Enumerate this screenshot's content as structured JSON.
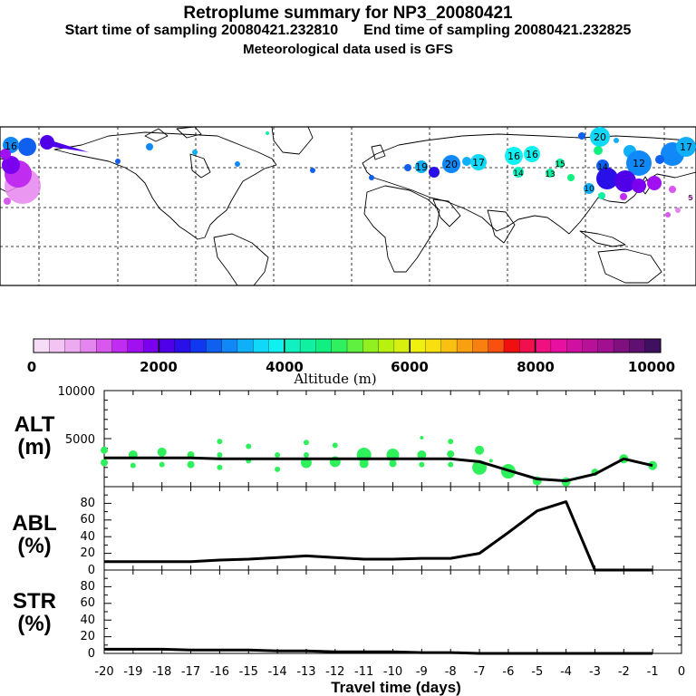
{
  "header": {
    "title": "Retroplume summary for NP3_20080421",
    "start_label": "Start time of sampling 20080421.232810",
    "end_label": "End time of sampling 20080421.232825",
    "met_label": "Meteorological data used is GFS"
  },
  "colorbar": {
    "title": "Altitude (m)",
    "tick_labels": [
      "0",
      "2000",
      "4000",
      "6000",
      "8000",
      "10000"
    ],
    "colors": [
      "#f7dcf7",
      "#f3c3f3",
      "#eeaaf0",
      "#e585ef",
      "#d858ee",
      "#c02cf0",
      "#a010f0",
      "#7c00f0",
      "#5000e8",
      "#2a10e8",
      "#1038f0",
      "#1060f0",
      "#1088f8",
      "#10b0f8",
      "#10d8f8",
      "#10f0f0",
      "#10f0c0",
      "#10f0a0",
      "#10f080",
      "#30f060",
      "#60f040",
      "#90f020",
      "#b8f010",
      "#d8f010",
      "#f0f010",
      "#f8e010",
      "#f8c010",
      "#f8a010",
      "#f88010",
      "#f85010",
      "#f01010",
      "#f01050",
      "#f01080",
      "#e810a0",
      "#d010a0",
      "#b81098",
      "#a01090",
      "#801080",
      "#601070",
      "#401060"
    ]
  },
  "panels": {
    "alt": {
      "label_line1": "ALT",
      "label_line2": "(m)"
    },
    "abl": {
      "label_line1": "ABL",
      "label_line2": "(%)"
    },
    "str": {
      "label_line1": "STR",
      "label_line2": "(%)"
    },
    "x_title": "Travel time (days)"
  },
  "chart_data": [
    {
      "name": "altitude",
      "type": "line",
      "title": "ALT (m)",
      "xlabel": "Travel time (days)",
      "ylabel": "ALT (m)",
      "xlim": [
        -20,
        0
      ],
      "ylim": [
        0,
        10000
      ],
      "y_tick_labels": [
        "5000",
        "10000"
      ],
      "x": [
        -20,
        -19,
        -18,
        -17,
        -16,
        -15,
        -14,
        -13,
        -12,
        -11,
        -10,
        -9,
        -8,
        -7,
        -6,
        -5,
        -4,
        -3,
        -2,
        -1
      ],
      "values": [
        3000,
        3000,
        3000,
        3000,
        2900,
        2900,
        2900,
        2900,
        2900,
        2900,
        2900,
        2900,
        2900,
        2600,
        1700,
        800,
        600,
        1300,
        2900,
        2200
      ],
      "plume_points": [
        {
          "x": -20,
          "y": 3800,
          "s": 4
        },
        {
          "x": -20,
          "y": 2500,
          "s": 4
        },
        {
          "x": -19,
          "y": 3300,
          "s": 5
        },
        {
          "x": -19,
          "y": 2200,
          "s": 3
        },
        {
          "x": -18,
          "y": 3600,
          "s": 5
        },
        {
          "x": -18,
          "y": 2300,
          "s": 3
        },
        {
          "x": -17,
          "y": 3300,
          "s": 4
        },
        {
          "x": -17,
          "y": 2300,
          "s": 4
        },
        {
          "x": -16,
          "y": 4700,
          "s": 3
        },
        {
          "x": -16,
          "y": 3300,
          "s": 3
        },
        {
          "x": -16,
          "y": 2000,
          "s": 3
        },
        {
          "x": -15,
          "y": 4200,
          "s": 3
        },
        {
          "x": -15,
          "y": 2700,
          "s": 3
        },
        {
          "x": -14,
          "y": 3300,
          "s": 3
        },
        {
          "x": -14,
          "y": 1800,
          "s": 3
        },
        {
          "x": -13,
          "y": 4600,
          "s": 3
        },
        {
          "x": -13,
          "y": 2500,
          "s": 6
        },
        {
          "x": -13,
          "y": 3300,
          "s": 3
        },
        {
          "x": -12,
          "y": 4300,
          "s": 3
        },
        {
          "x": -12,
          "y": 2600,
          "s": 6
        },
        {
          "x": -11,
          "y": 3300,
          "s": 8
        },
        {
          "x": -11,
          "y": 2400,
          "s": 5
        },
        {
          "x": -10,
          "y": 3300,
          "s": 7
        },
        {
          "x": -10,
          "y": 2400,
          "s": 4
        },
        {
          "x": -9,
          "y": 5100,
          "s": 2
        },
        {
          "x": -9,
          "y": 3300,
          "s": 5
        },
        {
          "x": -9,
          "y": 2300,
          "s": 3
        },
        {
          "x": -8,
          "y": 4700,
          "s": 3
        },
        {
          "x": -8,
          "y": 3400,
          "s": 4
        },
        {
          "x": -8,
          "y": 2300,
          "s": 3
        },
        {
          "x": -7,
          "y": 3800,
          "s": 5
        },
        {
          "x": -7,
          "y": 2000,
          "s": 8
        },
        {
          "x": -6.6,
          "y": 2700,
          "s": 2
        },
        {
          "x": -6,
          "y": 1600,
          "s": 8
        },
        {
          "x": -5,
          "y": 600,
          "s": 5
        },
        {
          "x": -4,
          "y": 500,
          "s": 5
        },
        {
          "x": -3,
          "y": 1500,
          "s": 4
        },
        {
          "x": -2,
          "y": 2900,
          "s": 5
        },
        {
          "x": -1,
          "y": 2200,
          "s": 5
        }
      ]
    },
    {
      "name": "abl",
      "type": "line",
      "title": "ABL (%)",
      "xlim": [
        -20,
        0
      ],
      "ylim": [
        0,
        100
      ],
      "y_tick_labels": [
        "0",
        "20",
        "40",
        "60",
        "80"
      ],
      "x": [
        -20,
        -19,
        -18,
        -17,
        -16,
        -15,
        -14,
        -13,
        -12,
        -11,
        -10,
        -9,
        -8,
        -7,
        -6,
        -5,
        -4,
        -3,
        -2,
        -1
      ],
      "values": [
        10,
        10,
        10,
        10,
        12,
        13,
        15,
        17,
        15,
        13,
        13,
        14,
        14,
        20,
        45,
        71,
        82,
        0,
        0,
        0
      ]
    },
    {
      "name": "str",
      "type": "line",
      "title": "STR (%)",
      "xlim": [
        -20,
        0
      ],
      "ylim": [
        0,
        100
      ],
      "y_tick_labels": [
        "0",
        "20",
        "40",
        "60",
        "80"
      ],
      "x": [
        -20,
        -19,
        -18,
        -17,
        -16,
        -15,
        -14,
        -13,
        -12,
        -11,
        -10,
        -9,
        -8,
        -7,
        -6,
        -5,
        -4,
        -3,
        -2,
        -1
      ],
      "values": [
        5,
        5,
        5,
        4,
        4,
        4,
        3,
        3,
        2,
        2,
        2,
        1,
        1,
        0,
        0,
        0,
        0,
        0,
        0,
        0
      ]
    }
  ],
  "x_tick_labels": [
    "-20",
    "-19",
    "-18",
    "-17",
    "-16",
    "-15",
    "-14",
    "-13",
    "-12",
    "-11",
    "-10",
    "-9",
    "-8",
    "-7",
    "-6",
    "-5",
    "-4",
    "-3",
    "-2",
    "-1",
    "0"
  ],
  "map": {
    "labels": [
      {
        "text": "16",
        "c": "#1088f8"
      },
      {
        "text": "20",
        "c": "#10b0f8"
      },
      {
        "text": "17",
        "c": "#10b0f8"
      },
      {
        "text": "19",
        "c": "#1088f8"
      },
      {
        "text": "16",
        "c": "#10d8f8"
      },
      {
        "text": "16",
        "c": "#10d8f8"
      },
      {
        "text": "14",
        "c": "#10f0c0"
      },
      {
        "text": "15",
        "c": "#10f0a0"
      },
      {
        "text": "13",
        "c": "#10f0a0"
      },
      {
        "text": "20",
        "c": "#10d8f8"
      },
      {
        "text": "14",
        "c": "#1060f0"
      },
      {
        "text": "17",
        "c": "#10b0f8"
      },
      {
        "text": "12",
        "c": "#1088f8"
      },
      {
        "text": "10",
        "c": "#10b0f8"
      },
      {
        "text": "5",
        "c": "#d858ee"
      }
    ]
  }
}
